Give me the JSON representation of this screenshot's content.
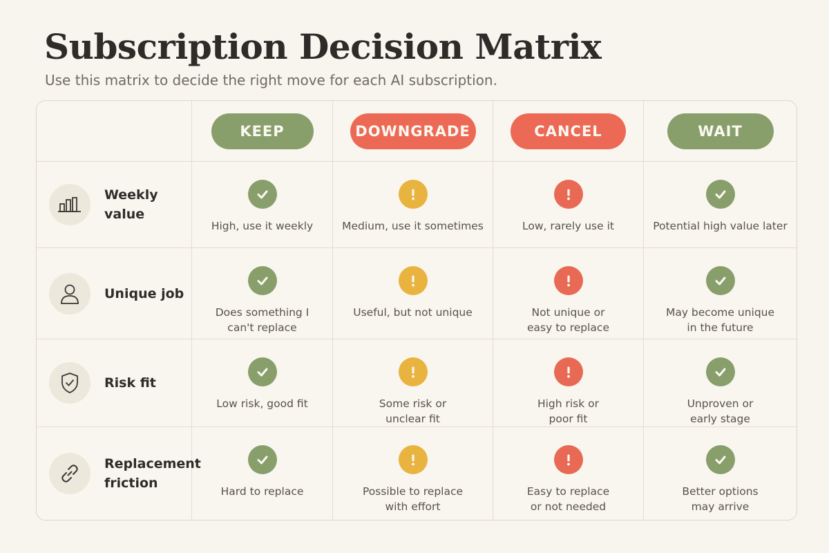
{
  "title": "Subscription Decision Matrix",
  "subtitle": "Use this matrix to decide the right move for each AI subscription.",
  "colors": {
    "keep": "#889f6c",
    "downgrade": "#ec6a55",
    "cancel": "#ec6a55",
    "wait": "#889f6c",
    "check": "#889f6c",
    "warning": "#e9b33f",
    "alert": "#e86a55"
  },
  "columns": [
    {
      "label": "KEEP",
      "color": "#889f6c"
    },
    {
      "label": "DOWNGRADE",
      "color": "#ec6a55"
    },
    {
      "label": "CANCEL",
      "color": "#ec6a55"
    },
    {
      "label": "WAIT",
      "color": "#889f6c"
    }
  ],
  "rows": [
    {
      "label": "Weekly value",
      "icon": "bar-chart-icon",
      "cells": [
        {
          "status": "check",
          "text": "High, use it weekly"
        },
        {
          "status": "warning",
          "text": "Medium, use it sometimes"
        },
        {
          "status": "alert",
          "text": "Low, rarely use it"
        },
        {
          "status": "check",
          "text": "Potential high value later"
        }
      ]
    },
    {
      "label": "Unique job",
      "icon": "person-icon",
      "cells": [
        {
          "status": "check",
          "text": "Does something I\ncan't replace"
        },
        {
          "status": "warning",
          "text": "Useful, but not unique"
        },
        {
          "status": "alert",
          "text": "Not unique or\neasy to replace"
        },
        {
          "status": "check",
          "text": "May become unique\nin the future"
        }
      ]
    },
    {
      "label": "Risk fit",
      "icon": "shield-check-icon",
      "cells": [
        {
          "status": "check",
          "text": "Low risk, good fit"
        },
        {
          "status": "warning",
          "text": "Some risk or\nunclear fit"
        },
        {
          "status": "alert",
          "text": "High risk or\npoor fit"
        },
        {
          "status": "check",
          "text": "Unproven or\nearly stage"
        }
      ]
    },
    {
      "label": "Replacement\nfriction",
      "icon": "link-icon",
      "cells": [
        {
          "status": "check",
          "text": "Hard to replace"
        },
        {
          "status": "warning",
          "text": "Possible to replace\nwith effort"
        },
        {
          "status": "alert",
          "text": "Easy to replace\nor not needed"
        },
        {
          "status": "check",
          "text": "Better options\nmay arrive"
        }
      ]
    }
  ]
}
